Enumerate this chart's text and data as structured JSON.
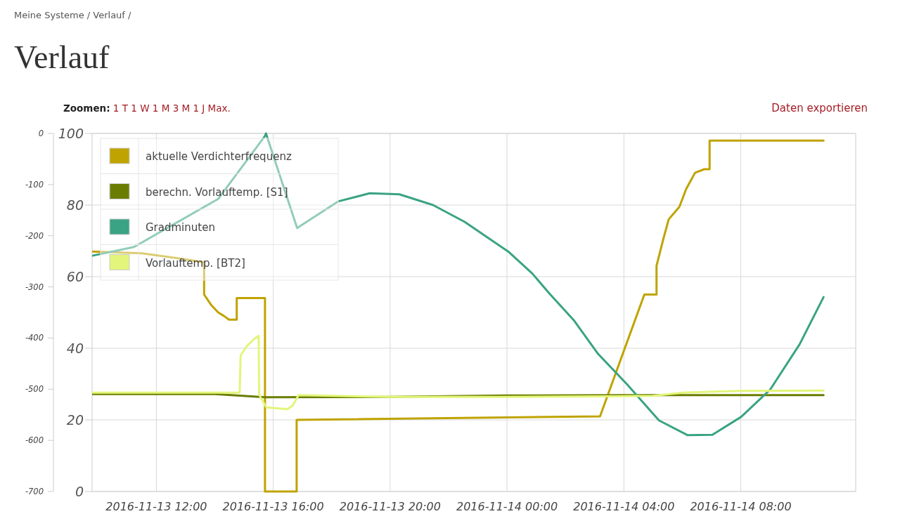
{
  "chart_data": {
    "type": "line",
    "title": "Verlauf",
    "annotations": [
      "Meine Systeme / Verlauf /",
      "Zoomen: 1 T 1 W 1 M 3 M 1 J Max.",
      "Daten exportieren"
    ],
    "xlim": [
      "2016-11-13T09:48",
      "2016-11-14T11:56"
    ],
    "xticks": [
      {
        "value": "2016-11-13T12:00",
        "label": "2016-11-13 12:00"
      },
      {
        "value": "2016-11-13T16:00",
        "label": "2016-11-13 16:00"
      },
      {
        "value": "2016-11-13T20:00",
        "label": "2016-11-13 20:00"
      },
      {
        "value": "2016-11-14T00:00",
        "label": "2016-11-14 00:00"
      },
      {
        "value": "2016-11-14T04:00",
        "label": "2016-11-14 04:00"
      },
      {
        "value": "2016-11-14T08:00",
        "label": "2016-11-14 08:00"
      }
    ],
    "ylim": [
      0,
      100
    ],
    "yticks": [
      0,
      20,
      40,
      60,
      80,
      100
    ],
    "y2lim": [
      -700,
      0
    ],
    "y2ticks": [
      -700,
      -600,
      -500,
      -400,
      -300,
      -200,
      -100,
      0
    ],
    "grid": true,
    "legend": "top left",
    "series": [
      {
        "name": "aktuelle Verdichterfrequenz",
        "color": "#bfa300",
        "x": [
          "2016-11-13T09:49",
          "2016-11-13T11:30",
          "2016-11-13T12:50",
          "2016-11-13T13:38",
          "2016-11-13T13:38",
          "2016-11-13T13:53",
          "2016-11-13T14:07",
          "2016-11-13T14:19",
          "2016-11-13T14:29",
          "2016-11-13T14:45",
          "2016-11-13T14:45",
          "2016-11-13T15:43",
          "2016-11-13T15:43",
          "2016-11-13T16:48",
          "2016-11-13T16:48",
          "2016-11-14T03:11",
          "2016-11-14T04:42",
          "2016-11-14T05:07",
          "2016-11-14T05:07",
          "2016-11-14T05:21",
          "2016-11-14T05:32",
          "2016-11-14T05:54",
          "2016-11-14T06:08",
          "2016-11-14T06:26",
          "2016-11-14T06:45",
          "2016-11-14T06:56",
          "2016-11-14T06:56",
          "2016-11-14T10:50"
        ],
        "values": [
          67,
          66.5,
          65,
          64,
          55,
          52,
          50,
          49,
          48,
          48,
          54,
          54,
          0,
          0,
          20,
          21,
          55,
          55,
          63,
          70.5,
          76,
          79.5,
          84.5,
          89,
          90,
          90,
          98,
          98
        ]
      },
      {
        "name": "berechn. Vorlauftemp. [S1]",
        "color": "#6b7d00",
        "x": [
          "2016-11-13T09:49",
          "2016-11-13T14:00",
          "2016-11-13T15:43",
          "2016-11-13T20:00",
          "2016-11-14T00:00",
          "2016-11-14T04:00",
          "2016-11-14T10:50"
        ],
        "values": [
          27.2,
          27.2,
          26.3,
          26.4,
          26.8,
          26.9,
          26.9
        ]
      },
      {
        "name": "Gradminuten",
        "color": "#3aa383",
        "axis": "y2",
        "x": [
          "2016-11-13T09:49",
          "2016-11-13T11:14",
          "2016-11-13T14:07",
          "2016-11-13T15:43",
          "2016-11-13T15:45",
          "2016-11-13T16:49",
          "2016-11-13T18:13",
          "2016-11-13T19:18",
          "2016-11-13T20:19",
          "2016-11-13T21:28",
          "2016-11-13T22:33",
          "2016-11-14T00:04",
          "2016-11-14T00:52",
          "2016-11-14T01:27",
          "2016-11-14T02:17",
          "2016-11-14T03:07",
          "2016-11-14T04:06",
          "2016-11-14T05:12",
          "2016-11-14T06:11",
          "2016-11-14T07:02",
          "2016-11-14T08:01",
          "2016-11-14T09:01",
          "2016-11-14T10:01",
          "2016-11-14T10:50"
        ],
        "values": [
          -239,
          -222,
          -128,
          -5,
          0,
          -185,
          -133,
          -117,
          -119,
          -140,
          -173,
          -232,
          -274,
          -313,
          -365,
          -431,
          -490,
          -561,
          -590,
          -589,
          -554,
          -500,
          -412,
          -320
        ]
      },
      {
        "name": "Vorlauftemp. [BT2]",
        "color": "#e3f57a",
        "x": [
          "2016-11-13T09:49",
          "2016-11-13T14:51",
          "2016-11-13T14:53",
          "2016-11-13T15:05",
          "2016-11-13T15:20",
          "2016-11-13T15:30",
          "2016-11-13T15:31",
          "2016-11-13T15:46",
          "2016-11-13T16:29",
          "2016-11-13T16:40",
          "2016-11-13T16:52",
          "2016-11-13T20:00",
          "2016-11-14T00:00",
          "2016-11-14T04:00",
          "2016-11-14T05:00",
          "2016-11-14T06:00",
          "2016-11-14T08:00",
          "2016-11-14T10:50"
        ],
        "values": [
          27.6,
          27.6,
          38,
          40.5,
          42.5,
          43.5,
          27,
          23.5,
          23,
          24,
          26.9,
          26.4,
          26.4,
          26.6,
          26.7,
          27.6,
          28.1,
          28.2
        ]
      }
    ]
  }
}
